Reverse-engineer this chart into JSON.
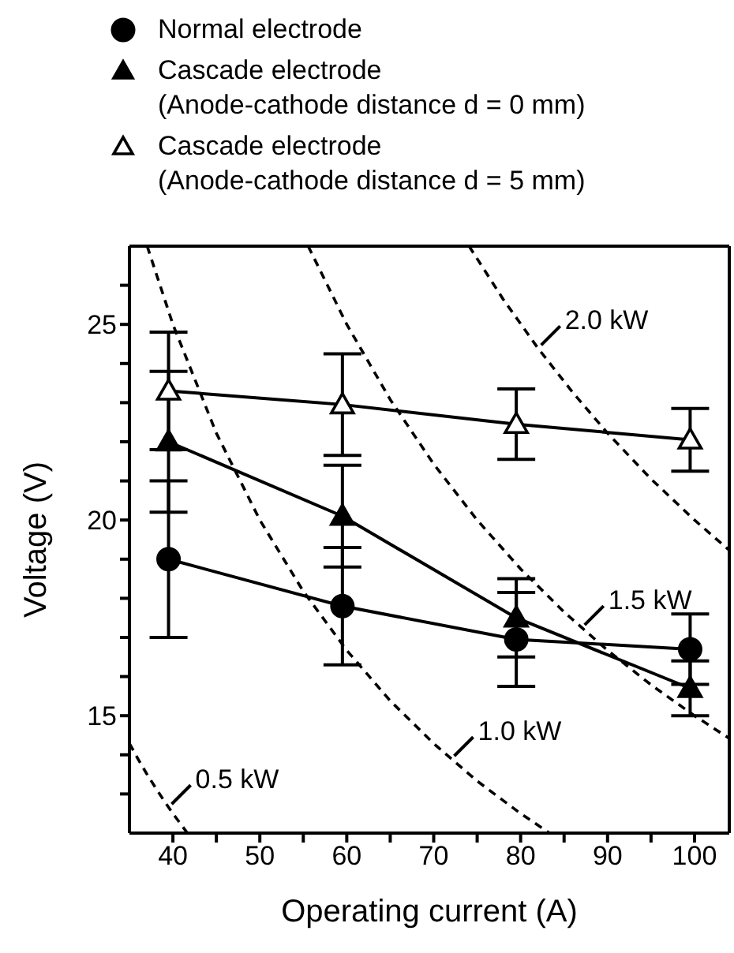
{
  "chart_data": {
    "type": "line",
    "xlabel": "Operating current (A)",
    "ylabel": "Voltage (V)",
    "xlim": [
      35,
      104
    ],
    "ylim": [
      12,
      27
    ],
    "xticks": [
      40,
      {
        "value": 45,
        "label": null
      },
      50,
      {
        "value": 55,
        "label": null
      },
      60,
      {
        "value": 65,
        "label": null
      },
      70,
      {
        "value": 75,
        "label": null
      },
      80,
      {
        "value": 85,
        "label": null
      },
      90,
      {
        "value": 95,
        "label": null
      },
      100
    ],
    "yticks": [
      {
        "value": 13,
        "label": null
      },
      {
        "value": 14,
        "label": null
      },
      15,
      {
        "value": 16,
        "label": null
      },
      {
        "value": 17,
        "label": null
      },
      {
        "value": 18,
        "label": null
      },
      {
        "value": 19,
        "label": null
      },
      20,
      {
        "value": 21,
        "label": null
      },
      {
        "value": 22,
        "label": null
      },
      {
        "value": 23,
        "label": null
      },
      {
        "value": 24,
        "label": null
      },
      25,
      {
        "value": 26,
        "label": null
      }
    ],
    "grid": false,
    "legend": "top",
    "series": [
      {
        "name": "Normal electrode",
        "color": "#000000",
        "marker": "circle",
        "line_style": "solid",
        "x": [
          39.5,
          59.5,
          79.5,
          99.5
        ],
        "values": [
          19.0,
          17.8,
          16.95,
          16.7
        ],
        "errors": [
          2.0,
          1.5,
          1.2,
          0.9
        ]
      },
      {
        "name": "Cascade electrode\n(Anode-cathode distance d = 0 mm)",
        "color": "#000000",
        "marker": "triangle",
        "line_style": "solid",
        "x": [
          39.5,
          59.5,
          79.5,
          99.5
        ],
        "values": [
          22.0,
          20.1,
          17.5,
          15.7
        ],
        "errors": [
          1.8,
          1.3,
          1.0,
          0.7
        ]
      },
      {
        "name": "Cascade electrode\n(Anode-cathode distance d = 5 mm)",
        "color": "#ffffff",
        "marker": "triangle",
        "line_style": "solid",
        "x": [
          39.5,
          59.5,
          79.5,
          99.5
        ],
        "values": [
          23.3,
          22.95,
          22.45,
          22.05
        ],
        "errors": [
          1.5,
          1.3,
          0.9,
          0.8
        ]
      },
      {
        "color": "#000000",
        "marker": "none",
        "line_style": "dashed",
        "x": [
          35,
          36,
          37,
          38,
          39,
          40,
          41,
          41.67
        ],
        "values": [
          14.29,
          13.89,
          13.51,
          13.16,
          12.82,
          12.5,
          12.2,
          12.0
        ]
      },
      {
        "color": "#000000",
        "marker": "none",
        "line_style": "dashed",
        "x": [
          37.04,
          40,
          45,
          50,
          55,
          60,
          65,
          70,
          75,
          80,
          83.33
        ],
        "values": [
          27.0,
          25.0,
          22.22,
          20.0,
          18.18,
          16.67,
          15.38,
          14.29,
          13.33,
          12.5,
          12.0
        ]
      },
      {
        "color": "#000000",
        "marker": "none",
        "line_style": "dashed",
        "x": [
          55.56,
          60,
          65,
          70,
          75,
          80,
          85,
          90,
          95,
          100,
          104
        ],
        "values": [
          27.0,
          25.0,
          23.08,
          21.43,
          20.0,
          18.75,
          17.65,
          16.67,
          15.79,
          15.0,
          14.42
        ]
      },
      {
        "color": "#000000",
        "marker": "none",
        "line_style": "dashed",
        "x": [
          74.07,
          78,
          82,
          86,
          90,
          95,
          100,
          104
        ],
        "values": [
          27.0,
          25.64,
          24.39,
          23.26,
          22.22,
          21.05,
          20.0,
          19.23
        ]
      }
    ],
    "annotations": [
      {
        "text": "0.5 kW",
        "x": 39.5,
        "y": 12.66
      },
      {
        "text": "1.0 kW",
        "x": 72,
        "y": 13.89
      },
      {
        "text": "1.5 kW",
        "x": 87,
        "y": 17.24
      },
      {
        "text": "2.0 kW",
        "x": 82,
        "y": 24.39
      }
    ]
  }
}
